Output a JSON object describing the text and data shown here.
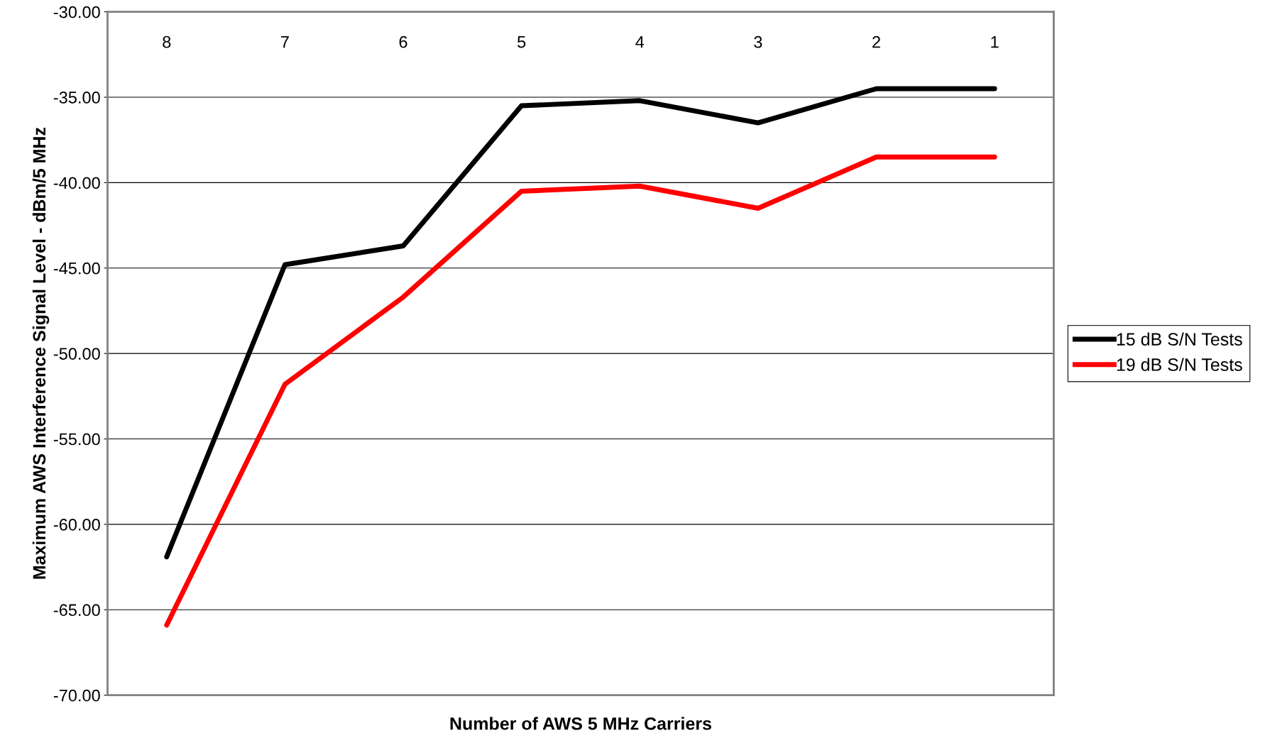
{
  "chart_data": {
    "type": "line",
    "xlabel": "Number of AWS 5 MHz Carriers",
    "ylabel": "Maximum AWS Interference Signal Level - dBm/5 MHz",
    "categories": [
      "8",
      "7",
      "6",
      "5",
      "4",
      "3",
      "2",
      "1"
    ],
    "series": [
      {
        "name": "15 dB S/N Tests",
        "color": "#000000",
        "values": [
          -61.9,
          -44.8,
          -43.7,
          -35.5,
          -35.2,
          -36.5,
          -34.5,
          -34.5
        ]
      },
      {
        "name": "19 dB S/N Tests",
        "color": "#ff0000",
        "values": [
          -65.9,
          -51.8,
          -46.7,
          -40.5,
          -40.2,
          -41.5,
          -38.5,
          -38.5
        ]
      }
    ],
    "ylim": [
      -70,
      -30
    ],
    "yticks": [
      {
        "value": -70,
        "label": "-70.00"
      },
      {
        "value": -65,
        "label": "-65.00"
      },
      {
        "value": -60,
        "label": "-60.00"
      },
      {
        "value": -55,
        "label": "-55.00"
      },
      {
        "value": -50,
        "label": "-50.00"
      },
      {
        "value": -45,
        "label": "-45.00"
      },
      {
        "value": -40,
        "label": "-40.00"
      },
      {
        "value": -35,
        "label": "-35.00"
      },
      {
        "value": -30,
        "label": "-30.00"
      }
    ],
    "grid": "y",
    "legend": "right",
    "marker": "none",
    "line_style": "solid"
  }
}
